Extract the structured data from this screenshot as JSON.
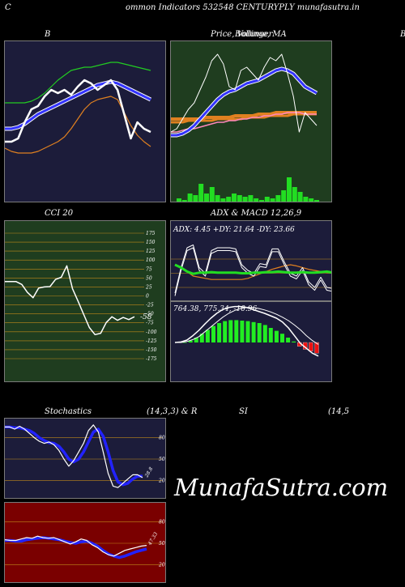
{
  "header": {
    "left": "C",
    "center": "ommon  Indicators 532548  CENTURYPLY munafasutra.in"
  },
  "titles": {
    "bb": "B",
    "price": "Price,  Volume,  MA",
    "price_overlap": "Bollinger",
    "right_edge": "B",
    "cci": "CCI 20",
    "adx": "ADX  & MACD 12,26,9",
    "stoch_left": "Stochastics",
    "stoch_right": "(14,3,3) & R",
    "rsi_left": "SI",
    "rsi_right": "(14,5"
  },
  "watermark": "MunafaSutra.com",
  "colors": {
    "panel_navy": "#1c1c3a",
    "panel_green": "#1f3d1f",
    "panel_red": "#7a0000",
    "white": "#ffffff",
    "blue": "#2222ff",
    "orange": "#d97a1a",
    "green": "#22dd22"
  },
  "chart_data": [
    {
      "type": "line",
      "panel": "bollinger",
      "series": [
        {
          "role": "upper",
          "color": "#22cc22",
          "values": [
            0.62,
            0.62,
            0.62,
            0.62,
            0.63,
            0.65,
            0.68,
            0.72,
            0.76,
            0.79,
            0.82,
            0.83,
            0.84,
            0.84,
            0.85,
            0.86,
            0.87,
            0.87,
            0.86,
            0.85,
            0.84,
            0.83,
            0.82
          ]
        },
        {
          "role": "middle",
          "color": "#3333ff",
          "values": [
            0.46,
            0.46,
            0.47,
            0.49,
            0.52,
            0.55,
            0.57,
            0.59,
            0.61,
            0.63,
            0.65,
            0.67,
            0.69,
            0.71,
            0.73,
            0.74,
            0.75,
            0.74,
            0.72,
            0.7,
            0.68,
            0.66,
            0.64
          ]
        },
        {
          "role": "lower",
          "color": "#e08020",
          "values": [
            0.34,
            0.32,
            0.31,
            0.31,
            0.31,
            0.32,
            0.34,
            0.36,
            0.38,
            0.41,
            0.46,
            0.52,
            0.58,
            0.62,
            0.64,
            0.65,
            0.66,
            0.64,
            0.56,
            0.48,
            0.42,
            0.38,
            0.35
          ]
        },
        {
          "role": "close",
          "color": "#ffffff",
          "values": [
            0.38,
            0.38,
            0.4,
            0.5,
            0.58,
            0.6,
            0.66,
            0.7,
            0.68,
            0.7,
            0.67,
            0.72,
            0.76,
            0.74,
            0.7,
            0.73,
            0.76,
            0.7,
            0.55,
            0.4,
            0.5,
            0.46,
            0.44
          ]
        }
      ]
    },
    {
      "type": "line",
      "panel": "price_ma",
      "series": [
        {
          "role": "close",
          "color": "#ffffff",
          "values": [
            0.44,
            0.46,
            0.52,
            0.58,
            0.62,
            0.7,
            0.78,
            0.88,
            0.92,
            0.86,
            0.72,
            0.7,
            0.82,
            0.84,
            0.8,
            0.76,
            0.84,
            0.9,
            0.88,
            0.92,
            0.8,
            0.66,
            0.44,
            0.56,
            0.52,
            0.48
          ]
        },
        {
          "role": "ma5",
          "color": "#3333ff",
          "values": [
            0.42,
            0.42,
            0.43,
            0.45,
            0.48,
            0.52,
            0.56,
            0.6,
            0.64,
            0.67,
            0.69,
            0.7,
            0.72,
            0.74,
            0.75,
            0.76,
            0.78,
            0.8,
            0.82,
            0.83,
            0.82,
            0.8,
            0.76,
            0.72,
            0.7,
            0.68
          ]
        },
        {
          "role": "ma_long",
          "color": "#e08020",
          "values": [
            0.52,
            0.52,
            0.52,
            0.52,
            0.52,
            0.52,
            0.53,
            0.53,
            0.53,
            0.53,
            0.53,
            0.54,
            0.54,
            0.54,
            0.54,
            0.55,
            0.55,
            0.55,
            0.56,
            0.56,
            0.56,
            0.56,
            0.56,
            0.56,
            0.56,
            0.56
          ]
        },
        {
          "role": "ma_long2",
          "color": "#e08020",
          "values": [
            0.5,
            0.5,
            0.5,
            0.51,
            0.51,
            0.51,
            0.51,
            0.51,
            0.52,
            0.52,
            0.52,
            0.52,
            0.52,
            0.53,
            0.53,
            0.53,
            0.53,
            0.54,
            0.54,
            0.54,
            0.54,
            0.55,
            0.55,
            0.55,
            0.55,
            0.55
          ]
        },
        {
          "role": "ma_pink",
          "color": "#ff88bb",
          "values": [
            0.44,
            0.44,
            0.45,
            0.46,
            0.46,
            0.47,
            0.48,
            0.49,
            0.5,
            0.5,
            0.51,
            0.51,
            0.52,
            0.52,
            0.53,
            0.53,
            0.54,
            0.54,
            0.55,
            0.55,
            0.56,
            0.56,
            0.56,
            0.55,
            0.55,
            0.55
          ]
        },
        {
          "role": "volume",
          "color": "#22dd22",
          "values": [
            0.03,
            0.02,
            0.06,
            0.05,
            0.12,
            0.06,
            0.1,
            0.05,
            0.03,
            0.04,
            0.06,
            0.05,
            0.04,
            0.05,
            0.03,
            0.02,
            0.04,
            0.03,
            0.05,
            0.08,
            0.16,
            0.1,
            0.07,
            0.04,
            0.03,
            0.02
          ]
        }
      ]
    },
    {
      "type": "line",
      "panel": "cci",
      "yticks": [
        175,
        150,
        125,
        100,
        75,
        50,
        25,
        0,
        -25,
        -50,
        -75,
        -100,
        -125,
        -150,
        -175
      ],
      "value_label": "-58",
      "series": [
        {
          "role": "cci",
          "color": "#ffffff",
          "values": [
            40,
            40,
            40,
            32,
            10,
            -5,
            22,
            25,
            26,
            46,
            52,
            84,
            20,
            -15,
            -52,
            -88,
            -108,
            -104,
            -74,
            -58,
            -68,
            -60,
            -66,
            -58
          ]
        }
      ]
    },
    {
      "type": "line",
      "panel": "adx",
      "subtitle": "ADX: 4.45 +DY: 21.64  -DY: 23.66",
      "series": [
        {
          "role": "adx",
          "color": "#22dd22",
          "values": [
            0.6,
            0.55,
            0.48,
            0.44,
            0.46,
            0.46,
            0.47,
            0.46,
            0.46,
            0.46,
            0.46,
            0.45,
            0.45,
            0.46,
            0.46,
            0.47,
            0.47,
            0.48,
            0.47,
            0.46,
            0.46,
            0.47,
            0.46,
            0.46,
            0.47,
            0.48,
            0.46
          ]
        },
        {
          "role": "plus_di",
          "color": "#ffffff",
          "values": [
            0.1,
            0.55,
            0.9,
            0.95,
            0.55,
            0.45,
            0.85,
            0.9,
            0.9,
            0.9,
            0.88,
            0.6,
            0.5,
            0.45,
            0.62,
            0.6,
            0.88,
            0.88,
            0.65,
            0.45,
            0.4,
            0.55,
            0.3,
            0.2,
            0.38,
            0.2,
            0.18
          ]
        },
        {
          "role": "minus_di",
          "color": "#e08020",
          "values": [
            0.6,
            0.55,
            0.48,
            0.4,
            0.38,
            0.36,
            0.34,
            0.34,
            0.34,
            0.34,
            0.34,
            0.34,
            0.36,
            0.4,
            0.44,
            0.48,
            0.52,
            0.55,
            0.58,
            0.6,
            0.58,
            0.55,
            0.52,
            0.5,
            0.48,
            0.46,
            0.45
          ]
        }
      ]
    },
    {
      "type": "bar",
      "panel": "macd",
      "subtitle": "764.38,  775.34,  -10.96",
      "series": [
        {
          "role": "histogram",
          "color": "#22ee22",
          "values": [
            0,
            0,
            0.04,
            0.1,
            0.18,
            0.26,
            0.34,
            0.4,
            0.44,
            0.46,
            0.46,
            0.45,
            0.44,
            0.42,
            0.4,
            0.36,
            0.3,
            0.24,
            0.18,
            0.1,
            0.02,
            -0.08,
            -0.14,
            -0.18,
            -0.22
          ]
        },
        {
          "role": "macd",
          "color": "#ffffff",
          "values": [
            0.0,
            0.01,
            0.05,
            0.14,
            0.25,
            0.38,
            0.5,
            0.6,
            0.68,
            0.72,
            0.74,
            0.74,
            0.72,
            0.68,
            0.64,
            0.6,
            0.55,
            0.5,
            0.42,
            0.3,
            0.14,
            -0.02,
            -0.12,
            -0.22,
            -0.28
          ]
        },
        {
          "role": "signal",
          "color": "#ffffff",
          "values": [
            0.0,
            0.0,
            0.02,
            0.06,
            0.12,
            0.22,
            0.32,
            0.42,
            0.52,
            0.6,
            0.66,
            0.7,
            0.72,
            0.72,
            0.7,
            0.67,
            0.63,
            0.58,
            0.52,
            0.45,
            0.36,
            0.26,
            0.14,
            0.04,
            -0.04
          ]
        }
      ]
    },
    {
      "type": "line",
      "panel": "stochastics",
      "yticks": [
        80,
        50,
        20
      ],
      "value_label": "28.8",
      "series": [
        {
          "role": "k",
          "color": "#ffffff",
          "values": [
            95,
            95,
            92,
            96,
            92,
            86,
            80,
            75,
            72,
            74,
            70,
            62,
            50,
            40,
            48,
            60,
            72,
            90,
            98,
            88,
            60,
            30,
            12,
            10,
            16,
            22,
            28,
            28,
            24
          ]
        },
        {
          "role": "d",
          "color": "#2222ff",
          "values": [
            95,
            95,
            94,
            94,
            92,
            90,
            86,
            80,
            76,
            73,
            72,
            68,
            60,
            50,
            46,
            50,
            60,
            74,
            88,
            92,
            82,
            60,
            34,
            18,
            14,
            16,
            22,
            26,
            26
          ]
        }
      ]
    },
    {
      "type": "line",
      "panel": "rsi",
      "yticks": [
        80,
        50,
        20
      ],
      "value_label": "47.33",
      "series": [
        {
          "role": "rsi",
          "color": "#ffffff",
          "values": [
            55,
            54,
            54,
            56,
            58,
            57,
            60,
            58,
            57,
            58,
            55,
            52,
            49,
            52,
            56,
            54,
            48,
            44,
            38,
            34,
            32,
            36,
            40,
            42,
            44,
            46,
            47
          ]
        },
        {
          "role": "mrsi",
          "color": "#2222ff",
          "values": [
            54,
            54,
            53,
            53,
            55,
            56,
            57,
            58,
            57,
            56,
            55,
            53,
            51,
            50,
            52,
            53,
            50,
            46,
            40,
            35,
            32,
            30,
            32,
            35,
            38,
            40,
            42
          ]
        }
      ]
    }
  ]
}
